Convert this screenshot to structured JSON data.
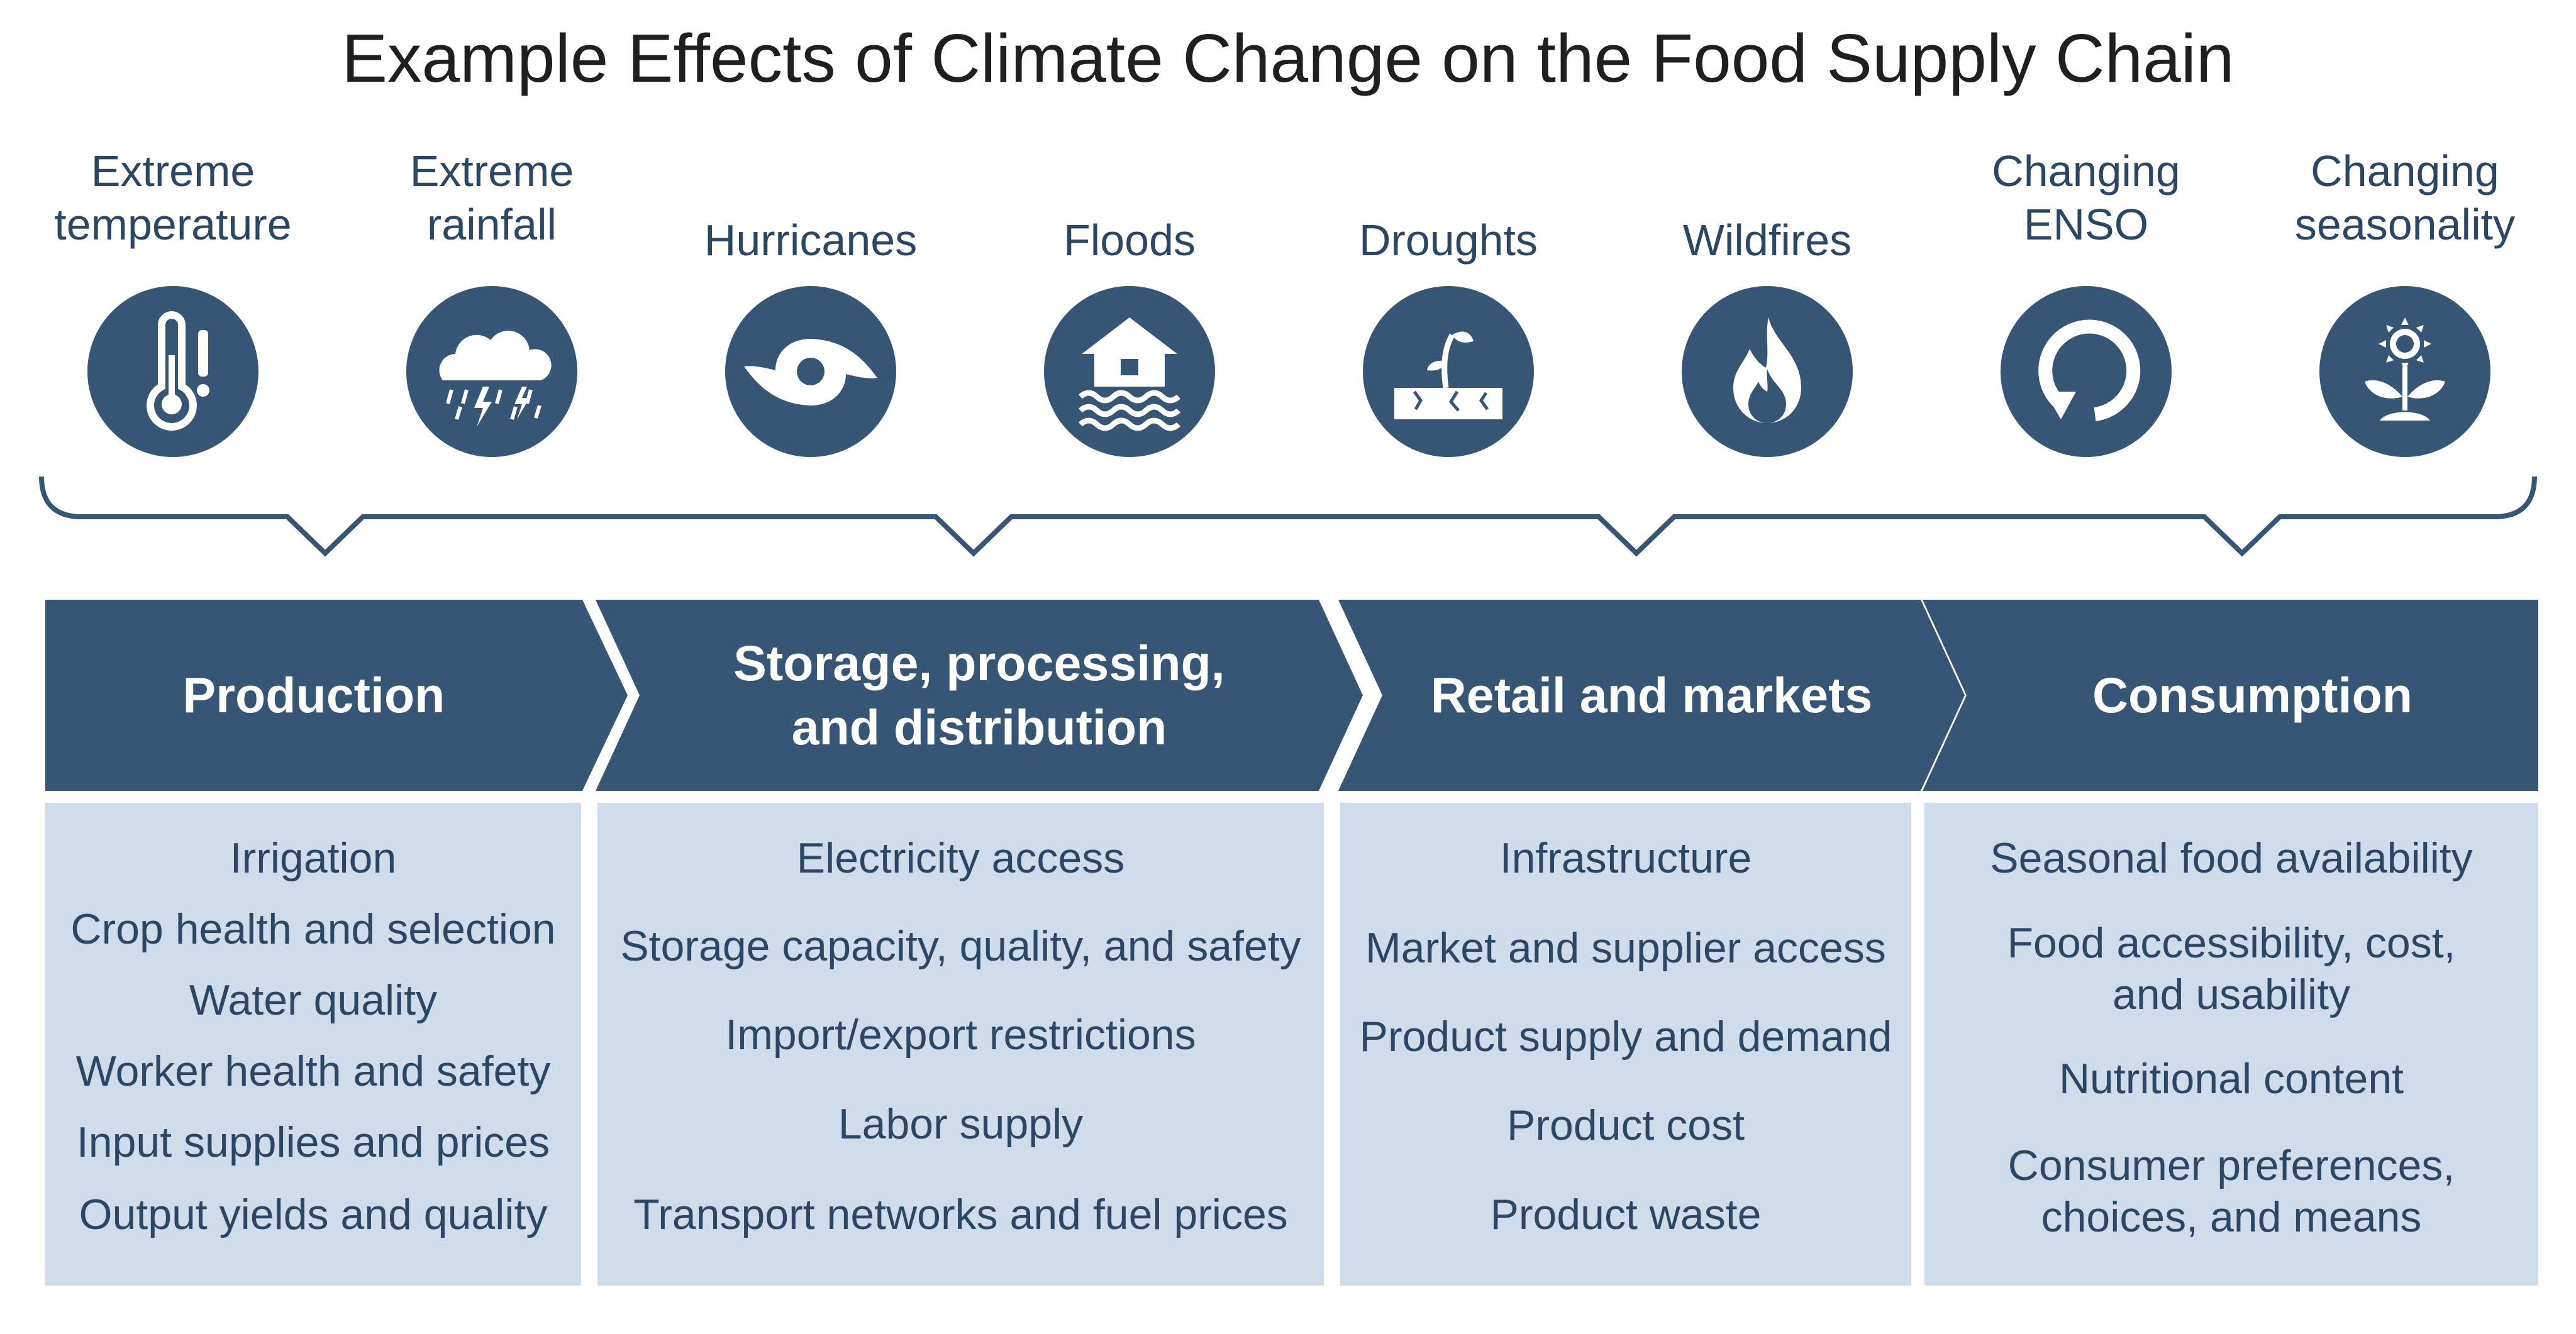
{
  "title": "Example Effects of Climate Change on the Food Supply Chain",
  "colors": {
    "icon_fill": "#375574",
    "stage_fill": "#375574",
    "effect_bg": "#cedcec",
    "text": "#2c4763"
  },
  "hazards": [
    {
      "label": "Extreme\ntemperature",
      "icon": "thermometer-alert-icon"
    },
    {
      "label": "Extreme\nrainfall",
      "icon": "storm-cloud-icon"
    },
    {
      "label": "Hurricanes",
      "icon": "hurricane-icon"
    },
    {
      "label": "Floods",
      "icon": "flooded-house-icon"
    },
    {
      "label": "Droughts",
      "icon": "drought-sprout-icon"
    },
    {
      "label": "Wildfires",
      "icon": "flame-icon"
    },
    {
      "label": "Changing\nENSO",
      "icon": "cycle-arrow-icon"
    },
    {
      "label": "Changing\nseasonality",
      "icon": "sunflower-icon"
    }
  ],
  "stages": [
    {
      "label": "Production",
      "effects": [
        "Irrigation",
        "Crop health and selection",
        "Water quality",
        "Worker health and safety",
        "Input supplies and prices",
        "Output yields and quality"
      ]
    },
    {
      "label": "Storage, processing,\nand distribution",
      "effects": [
        "Electricity access",
        "Storage capacity, quality, and safety",
        "Import/export restrictions",
        "Labor supply",
        "Transport networks and fuel prices"
      ]
    },
    {
      "label": "Retail and markets",
      "effects": [
        "Infrastructure",
        "Market and supplier access",
        "Product supply and demand",
        "Product cost",
        "Product waste"
      ]
    },
    {
      "label": "Consumption",
      "effects": [
        "Seasonal food availability",
        "Food accessibility, cost,\nand usability",
        "Nutritional content",
        "Consumer preferences,\nchoices, and means"
      ]
    }
  ]
}
